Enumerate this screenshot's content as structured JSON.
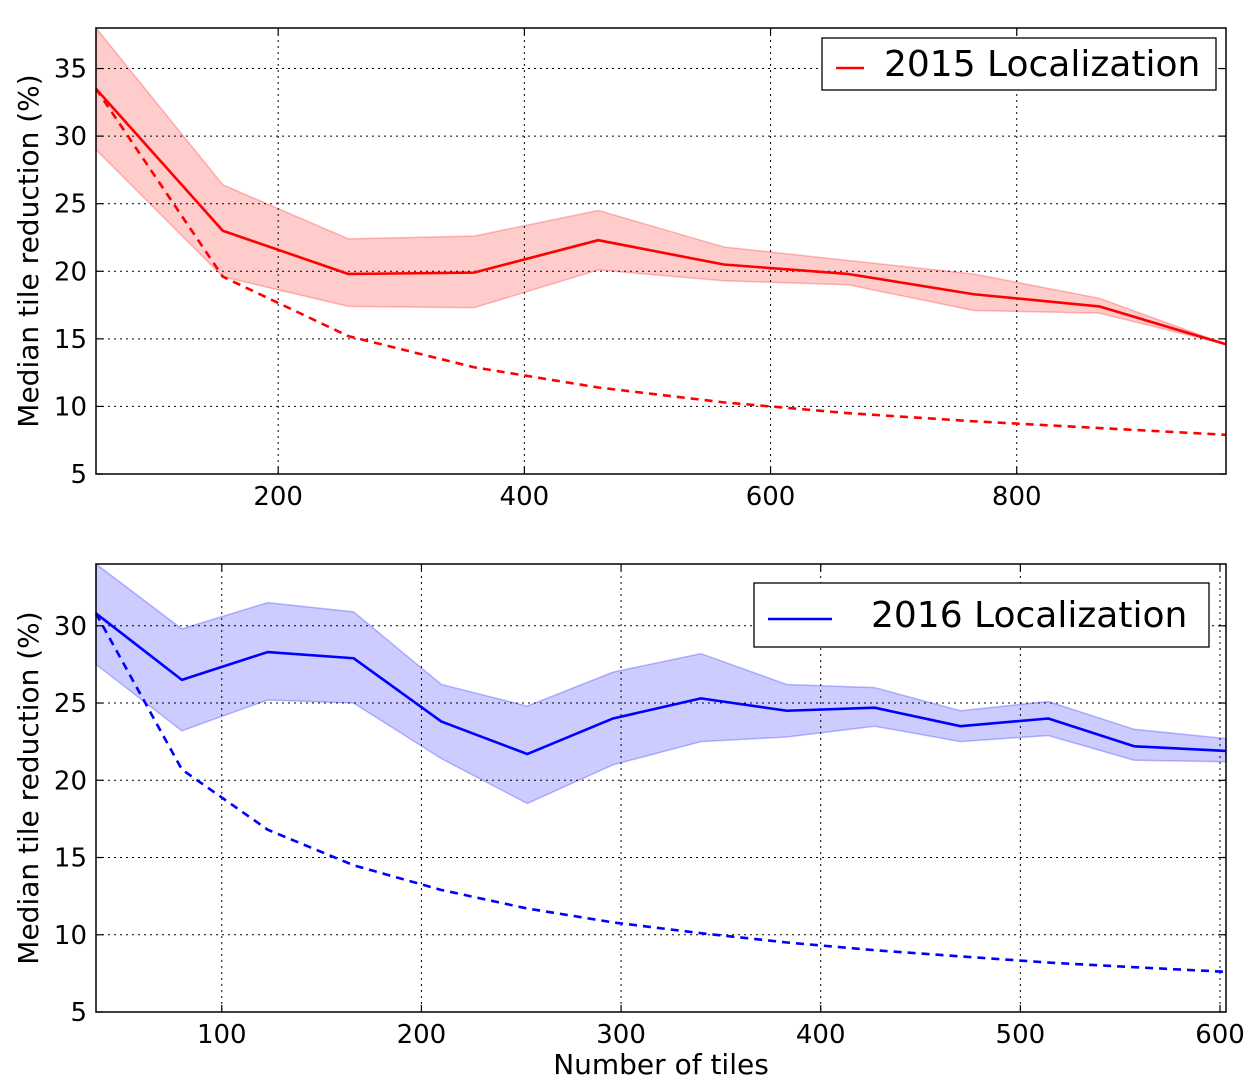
{
  "chart_data": [
    {
      "type": "line",
      "title": "",
      "xlabel": "",
      "ylabel": "Median tile reduction (%)",
      "xlim": [
        52,
        970
      ],
      "ylim": [
        5,
        38
      ],
      "xticks": [
        200,
        400,
        600,
        800
      ],
      "yticks": [
        5,
        10,
        15,
        20,
        25,
        30,
        35
      ],
      "grid": true,
      "legend_position": "top-right",
      "color": "#ff0000",
      "band_color": "#ffcccc",
      "x": [
        52,
        155,
        257,
        359,
        460,
        562,
        663,
        765,
        867,
        970
      ],
      "series": [
        {
          "name": "2015 Localization",
          "style": "solid",
          "values": [
            33.5,
            23.0,
            19.8,
            19.9,
            22.3,
            20.5,
            19.8,
            18.3,
            17.4,
            14.6
          ]
        },
        {
          "name": "",
          "style": "dashed",
          "values": [
            33.5,
            19.6,
            15.2,
            12.9,
            11.4,
            10.3,
            9.5,
            8.9,
            8.4,
            7.9
          ]
        }
      ],
      "band": {
        "upper": [
          38.0,
          26.4,
          22.4,
          22.6,
          24.5,
          21.8,
          20.8,
          19.8,
          18.0,
          14.6
        ],
        "lower": [
          29.0,
          19.6,
          17.4,
          17.3,
          20.1,
          19.3,
          19.0,
          17.1,
          16.9,
          14.6
        ]
      }
    },
    {
      "type": "line",
      "title": "",
      "xlabel": "Number of tiles",
      "ylabel": "Median tile reduction (%)",
      "xlim": [
        37,
        603
      ],
      "ylim": [
        5,
        34
      ],
      "xticks": [
        100,
        200,
        300,
        400,
        500,
        600
      ],
      "yticks": [
        5,
        10,
        15,
        20,
        25,
        30
      ],
      "grid": true,
      "legend_position": "top-right",
      "color": "#0000ff",
      "band_color": "#ccccff",
      "x": [
        37,
        80,
        123,
        166,
        210,
        253,
        296,
        340,
        383,
        427,
        470,
        514,
        557,
        603
      ],
      "series": [
        {
          "name": "2016 Localization",
          "style": "solid",
          "values": [
            30.8,
            26.5,
            28.3,
            27.9,
            23.8,
            21.7,
            24.0,
            25.3,
            24.5,
            24.7,
            23.5,
            24.0,
            22.2,
            21.9
          ]
        },
        {
          "name": "",
          "style": "dashed",
          "values": [
            30.8,
            20.7,
            16.8,
            14.5,
            12.9,
            11.7,
            10.8,
            10.1,
            9.5,
            9.0,
            8.6,
            8.2,
            7.9,
            7.6
          ]
        }
      ],
      "band": {
        "upper": [
          34.0,
          29.8,
          31.5,
          30.9,
          26.2,
          24.8,
          27.0,
          28.2,
          26.2,
          26.0,
          24.5,
          25.1,
          23.3,
          22.7
        ],
        "lower": [
          27.5,
          23.2,
          25.2,
          25.0,
          21.4,
          18.5,
          21.0,
          22.5,
          22.8,
          23.5,
          22.5,
          22.9,
          21.3,
          21.2
        ]
      }
    }
  ]
}
